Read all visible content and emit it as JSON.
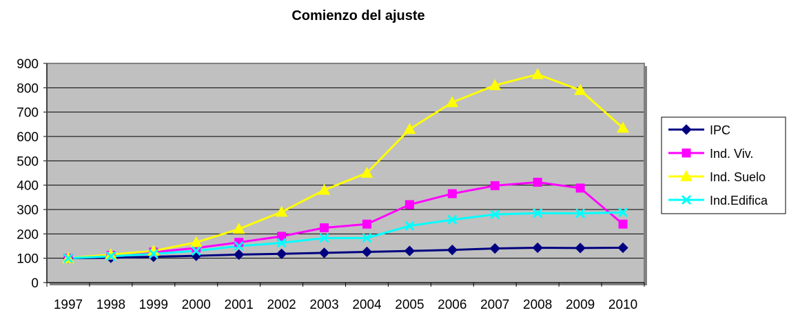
{
  "chart_data": {
    "type": "line",
    "title": "Comienzo del ajuste",
    "xlabel": "",
    "ylabel": "",
    "categories": [
      "1997",
      "1998",
      "1999",
      "2000",
      "2001",
      "2002",
      "2003",
      "2004",
      "2005",
      "2006",
      "2007",
      "2008",
      "2009",
      "2010"
    ],
    "ylim": [
      0,
      900
    ],
    "yticks": [
      0,
      100,
      200,
      300,
      400,
      500,
      600,
      700,
      800,
      900
    ],
    "grid": true,
    "plot_background": "#c0c0c0",
    "legend_position": "right",
    "series": [
      {
        "name": "IPC",
        "color": "#000080",
        "marker": "diamond",
        "values": [
          100,
          102,
          106,
          110,
          115,
          118,
          122,
          126,
          130,
          134,
          140,
          143,
          142,
          143
        ]
      },
      {
        "name": "Ind. Viv.",
        "color": "#ff00ff",
        "marker": "square",
        "values": [
          100,
          112,
          125,
          142,
          165,
          190,
          225,
          240,
          320,
          365,
          398,
          412,
          388,
          240
        ]
      },
      {
        "name": "Ind. Suelo",
        "color": "#ffff00",
        "marker": "triangle",
        "values": [
          100,
          115,
          130,
          165,
          220,
          290,
          380,
          450,
          630,
          740,
          810,
          855,
          790,
          635
        ]
      },
      {
        "name": "Ind.Edifica",
        "color": "#00ffff",
        "marker": "x",
        "values": [
          100,
          108,
          118,
          130,
          150,
          163,
          183,
          183,
          233,
          258,
          280,
          285,
          284,
          288
        ]
      }
    ]
  }
}
